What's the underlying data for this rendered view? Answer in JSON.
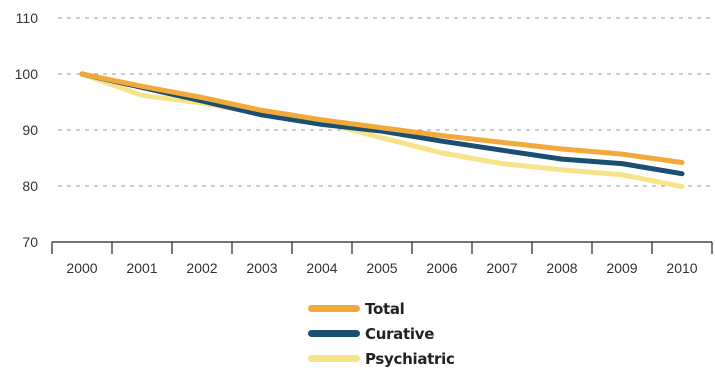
{
  "chart_data": {
    "type": "line",
    "title": "",
    "xlabel": "",
    "ylabel": "",
    "x": [
      "2000",
      "2001",
      "2002",
      "2003",
      "2004",
      "2005",
      "2006",
      "2007",
      "2008",
      "2009",
      "2010"
    ],
    "ylim": [
      70,
      110
    ],
    "yticks": [
      70,
      80,
      90,
      100,
      110
    ],
    "grid": "horizontal dashed",
    "legend_position": "bottom",
    "series": [
      {
        "name": "Total",
        "color": "#F2A93B",
        "values": [
          100,
          97.8,
          95.8,
          93.5,
          91.8,
          90.4,
          89.0,
          87.8,
          86.6,
          85.7,
          84.2
        ]
      },
      {
        "name": "Curative",
        "color": "#1B4F72",
        "values": [
          100,
          97.6,
          95.2,
          92.7,
          91.0,
          89.8,
          88.0,
          86.4,
          84.8,
          84.0,
          82.2
        ]
      },
      {
        "name": "Psychiatric",
        "color": "#F7E48A",
        "values": [
          100,
          96.2,
          94.8,
          92.9,
          91.4,
          88.6,
          85.9,
          84.0,
          82.9,
          82.0,
          79.9
        ]
      }
    ]
  }
}
